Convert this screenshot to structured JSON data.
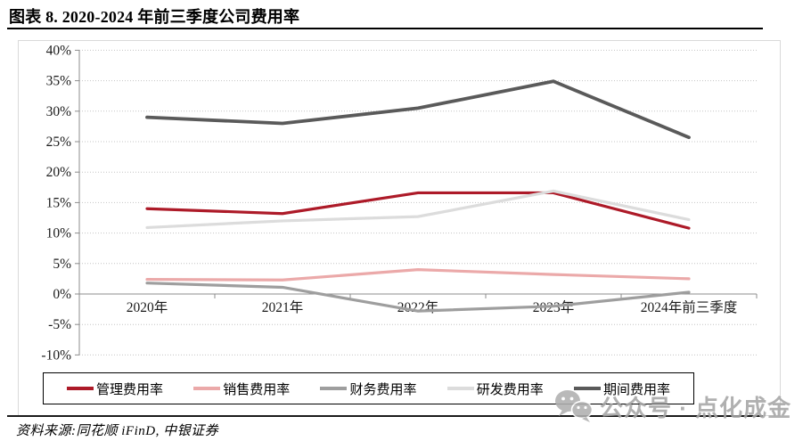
{
  "header": {
    "title": "图表 8. 2020-2024 年前三季度公司费用率"
  },
  "footer": {
    "source": "资料来源:同花顺 iFinD, 中银证券"
  },
  "watermark": {
    "text": "公众号 · 点化成金",
    "icon": "wechat-icon"
  },
  "chart_data": {
    "type": "line",
    "title": "2020-2024 年前三季度公司费用率",
    "categories": [
      "2020年",
      "2021年",
      "2022年",
      "2023年",
      "2024年前三季度"
    ],
    "series": [
      {
        "name": "管理费用率",
        "color": "#AD1A28",
        "values": [
          14.0,
          13.2,
          16.6,
          16.6,
          10.8
        ]
      },
      {
        "name": "销售费用率",
        "color": "#EBA9A9",
        "values": [
          2.4,
          2.3,
          4.0,
          3.2,
          2.5
        ]
      },
      {
        "name": "财务费用率",
        "color": "#9E9E9E",
        "values": [
          1.8,
          1.1,
          -2.8,
          -2.0,
          0.3
        ]
      },
      {
        "name": "研发费用率",
        "color": "#DCDCDC",
        "values": [
          10.9,
          12.0,
          12.7,
          16.9,
          12.2
        ]
      },
      {
        "name": "期间费用率",
        "color": "#5A5A5A",
        "values": [
          29.0,
          28.0,
          30.5,
          34.9,
          25.7
        ]
      }
    ],
    "ylim": [
      -10,
      40
    ],
    "ytick_step": 5,
    "ytick_labels": [
      "40%",
      "35%",
      "30%",
      "25%",
      "20%",
      "15%",
      "10%",
      "5%",
      "0%",
      "-5%",
      "-10%"
    ],
    "grid": "horizontal-dotted",
    "legend_position": "bottom-box",
    "axis_color": "#8c8c8c",
    "gridline_color": "#c4c4c4",
    "tick_label_color": "#1a1a1a"
  }
}
